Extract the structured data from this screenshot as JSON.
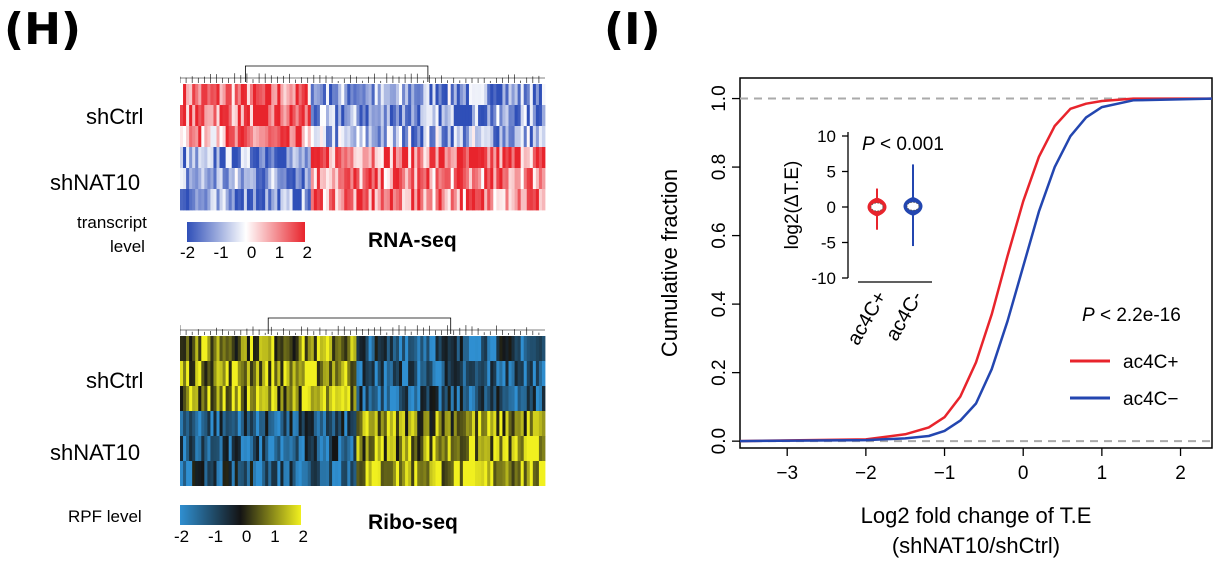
{
  "panels": {
    "H": {
      "label": "(H)",
      "rna": {
        "row_labels": [
          "shCtrl",
          "shNAT10"
        ],
        "legend_title": [
          "transcript",
          "level"
        ],
        "legend_ticks": [
          "-2",
          "-1",
          "0",
          "1",
          "2"
        ],
        "method_label": "RNA-seq",
        "colors": {
          "low": "#2f4fb8",
          "mid": "#ffffff",
          "high": "#e8242c"
        }
      },
      "ribo": {
        "row_labels": [
          "shCtrl",
          "shNAT10"
        ],
        "legend_title": "RPF level",
        "legend_ticks": [
          "-2",
          "-1",
          "0",
          "1",
          "2"
        ],
        "method_label": "Ribo-seq",
        "colors": {
          "low": "#2f8fd1",
          "mid": "#141414",
          "high": "#f1f01f"
        }
      }
    },
    "I": {
      "label": "(I)"
    }
  },
  "chart_data": [
    {
      "type": "heatmap",
      "name": "RNA-seq",
      "rows": [
        "shCtrl",
        "shCtrl",
        "shCtrl",
        "shNAT10",
        "shNAT10",
        "shNAT10"
      ],
      "clusters": [
        {
          "fraction": 0.36,
          "row_values": [
            1.2,
            1.4,
            1.0,
            -1.2,
            -1.0,
            -1.3
          ]
        },
        {
          "fraction": 0.64,
          "row_values": [
            -1.1,
            -1.2,
            -0.9,
            1.3,
            1.1,
            1.2
          ]
        }
      ],
      "scale": [
        -2,
        2
      ]
    },
    {
      "type": "heatmap",
      "name": "Ribo-seq",
      "rows": [
        "shCtrl",
        "shCtrl",
        "shCtrl",
        "shNAT10",
        "shNAT10",
        "shNAT10"
      ],
      "clusters": [
        {
          "fraction": 0.48,
          "row_values": [
            1.1,
            1.3,
            1.2,
            -1.1,
            -1.2,
            -1.0
          ]
        },
        {
          "fraction": 0.52,
          "row_values": [
            -1.0,
            -1.2,
            -1.1,
            1.0,
            1.2,
            1.4
          ]
        }
      ],
      "scale": [
        -2,
        2
      ]
    },
    {
      "type": "line",
      "title": "",
      "xlabel": "Log2 fold change of T.E",
      "xlabel2": "(shNAT10/shCtrl)",
      "ylabel": "Cumulative fraction",
      "xlim": [
        -3.6,
        2.4
      ],
      "ylim": [
        -0.02,
        1.06
      ],
      "xticks": [
        -3,
        -2,
        -1,
        0,
        1,
        2
      ],
      "yticks": [
        0.0,
        0.2,
        0.4,
        0.6,
        0.8,
        1.0
      ],
      "xtick_labels": [
        "−3",
        "−2",
        "−1",
        "0",
        "1",
        "2"
      ],
      "ytick_labels": [
        "0.0",
        "0.2",
        "0.4",
        "0.6",
        "0.8",
        "1.0"
      ],
      "reference_lines": [
        0.0,
        1.0
      ],
      "annotation": {
        "prefix": "P",
        "text": " < 2.2e-16"
      },
      "legend_position": "bottom-right",
      "series": [
        {
          "name": "ac4C+",
          "color": "#e8242c",
          "x": [
            -3.6,
            -2.0,
            -1.5,
            -1.2,
            -1.0,
            -0.8,
            -0.6,
            -0.4,
            -0.2,
            0.0,
            0.2,
            0.4,
            0.6,
            0.8,
            1.0,
            1.4,
            2.4
          ],
          "y": [
            0.0,
            0.005,
            0.02,
            0.04,
            0.07,
            0.13,
            0.23,
            0.37,
            0.54,
            0.7,
            0.83,
            0.92,
            0.97,
            0.985,
            0.993,
            1.0,
            1.0
          ]
        },
        {
          "name": "ac4C−",
          "color": "#2346b0",
          "x": [
            -3.6,
            -2.0,
            -1.5,
            -1.2,
            -1.0,
            -0.8,
            -0.6,
            -0.4,
            -0.2,
            0.0,
            0.2,
            0.4,
            0.6,
            0.8,
            1.0,
            1.4,
            2.4
          ],
          "y": [
            0.0,
            0.003,
            0.008,
            0.015,
            0.03,
            0.06,
            0.11,
            0.21,
            0.35,
            0.51,
            0.67,
            0.8,
            0.89,
            0.945,
            0.975,
            0.995,
            1.0
          ]
        }
      ],
      "inset": {
        "type": "violin",
        "ylabel": "log2(ΔT.E)",
        "ylim": [
          -10,
          10
        ],
        "yticks": [
          -10,
          -5,
          0,
          5,
          10
        ],
        "categories": [
          "ac4C+",
          "ac4C-"
        ],
        "annotation": {
          "prefix": "P",
          "text": " < 0.001"
        },
        "violins": [
          {
            "category": "ac4C+",
            "color": "#e8242c",
            "min": -3.2,
            "max": 2.6,
            "median": 0.0
          },
          {
            "category": "ac4C-",
            "color": "#2346b0",
            "min": -5.5,
            "max": 6.0,
            "median": 0.1
          }
        ]
      }
    }
  ]
}
